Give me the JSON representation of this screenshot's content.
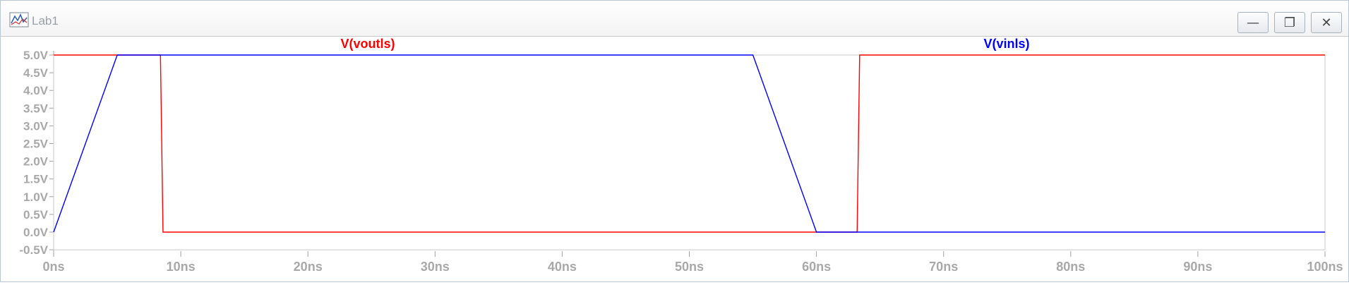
{
  "window": {
    "title": "Lab1",
    "icons": {
      "app": "waveform-plot-icon",
      "minimize": "minimize-icon",
      "maximize": "maximize-icon",
      "close": "close-icon"
    },
    "button_glyphs": {
      "minimize": "—",
      "maximize": "❐",
      "close": "✕"
    }
  },
  "chart_data": {
    "type": "line",
    "title": "",
    "xlabel": "",
    "ylabel": "",
    "xlim": [
      0,
      100
    ],
    "ylim": [
      -0.5,
      5.0
    ],
    "x_unit": "ns",
    "y_unit": "V",
    "x_ticks": [
      0,
      10,
      20,
      30,
      40,
      50,
      60,
      70,
      80,
      90,
      100
    ],
    "x_tick_labels": [
      "0ns",
      "10ns",
      "20ns",
      "30ns",
      "40ns",
      "50ns",
      "60ns",
      "70ns",
      "80ns",
      "90ns",
      "100ns"
    ],
    "y_ticks": [
      5.0,
      4.5,
      4.0,
      3.5,
      3.0,
      2.5,
      2.0,
      1.5,
      1.0,
      0.5,
      0.0,
      -0.5
    ],
    "y_tick_labels": [
      "5.0V",
      "4.5V",
      "4.0V",
      "3.5V",
      "3.0V",
      "2.5V",
      "2.0V",
      "1.5V",
      "1.0V",
      "0.5V",
      "0.0V",
      "-0.5V"
    ],
    "grid": false,
    "series": [
      {
        "name": "V(voutls)",
        "color": "#ff0000",
        "x": [
          0,
          5,
          8.4,
          8.6,
          63.2,
          63.4,
          100
        ],
        "y": [
          5.0,
          5.0,
          5.0,
          0.0,
          0.0,
          5.0,
          5.0
        ]
      },
      {
        "name": "V(vinls)",
        "color": "#0000ff",
        "x": [
          0,
          5,
          55,
          60,
          100
        ],
        "y": [
          0.0,
          5.0,
          5.0,
          0.0,
          0.0
        ]
      }
    ]
  }
}
